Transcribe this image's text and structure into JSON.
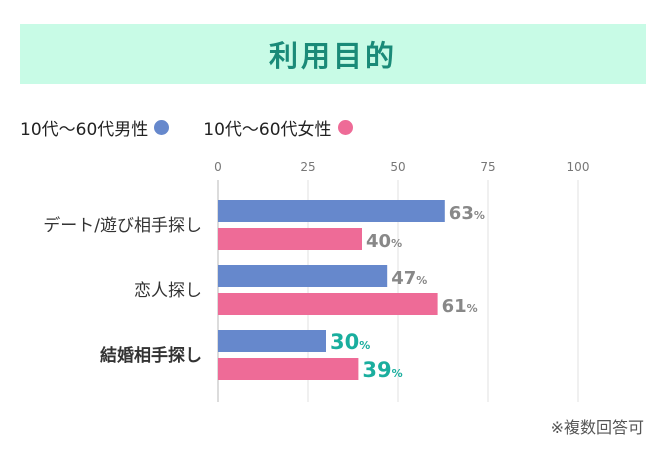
{
  "chart_data": {
    "type": "bar",
    "orientation": "horizontal",
    "title": "利用目的",
    "xlim": [
      0,
      100
    ],
    "xticks": [
      0,
      25,
      50,
      75,
      100
    ],
    "grid": true,
    "legend_position": "top-left",
    "categories": [
      "デート/遊び相手探し",
      "恋人探し",
      "結婚相手探し"
    ],
    "highlighted_category": "結婚相手探し",
    "value_suffix": "%",
    "series": [
      {
        "name": "10代〜60代男性",
        "color": "#6688cc",
        "values": [
          63,
          47,
          30
        ]
      },
      {
        "name": "10代〜60代女性",
        "color": "#ee6b97",
        "values": [
          40,
          61,
          39
        ]
      }
    ],
    "label_color": "#888888",
    "highlight_label_color": "#1aae9e"
  },
  "footnote": "※複数回答可"
}
